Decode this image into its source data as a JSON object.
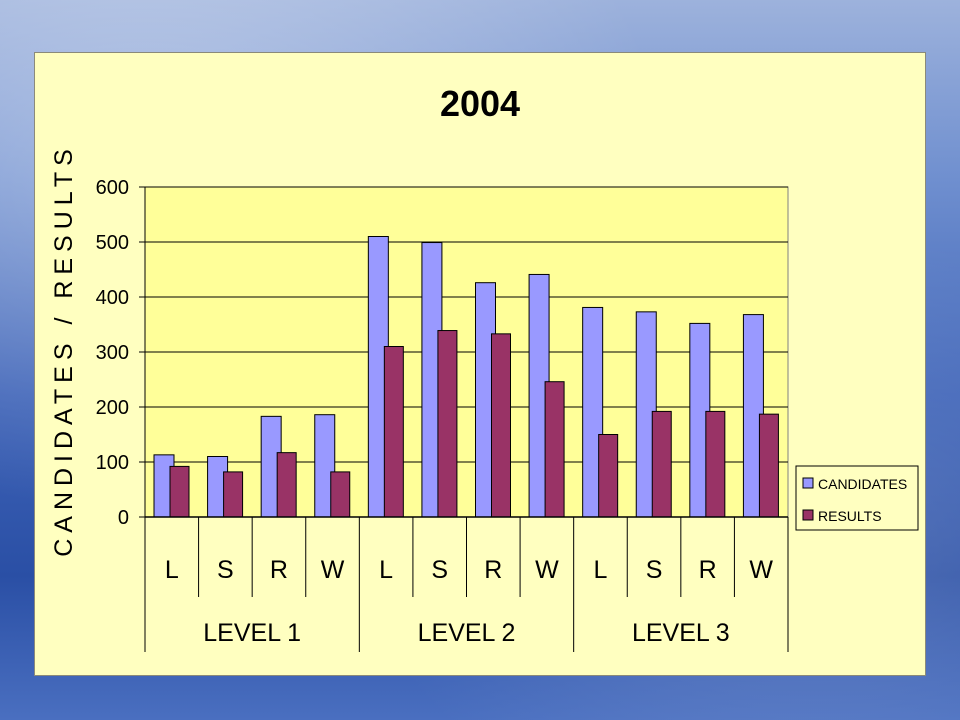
{
  "chart_data": {
    "type": "bar",
    "title": "2004",
    "ylabel": "CANDIDATES / RESULTS",
    "xlabel": "",
    "ylim": [
      0,
      600
    ],
    "yticks": [
      "0",
      "100",
      "200",
      "300",
      "400",
      "500",
      "600"
    ],
    "categories": [
      "L",
      "S",
      "R",
      "W",
      "L",
      "S",
      "R",
      "W",
      "L",
      "S",
      "R",
      "W"
    ],
    "groups": [
      "LEVEL 1",
      "LEVEL 2",
      "LEVEL 3"
    ],
    "series": [
      {
        "name": "CANDIDATES",
        "color": "#9999ff",
        "values": [
          113,
          110,
          183,
          186,
          510,
          499,
          426,
          441,
          381,
          373,
          352,
          368
        ]
      },
      {
        "name": "RESULTS",
        "color": "#993366",
        "values": [
          92,
          82,
          117,
          82,
          310,
          339,
          333,
          246,
          150,
          192,
          192,
          187
        ]
      }
    ],
    "grid": true,
    "legend_position": "right",
    "plot_background": "#ffff99"
  }
}
